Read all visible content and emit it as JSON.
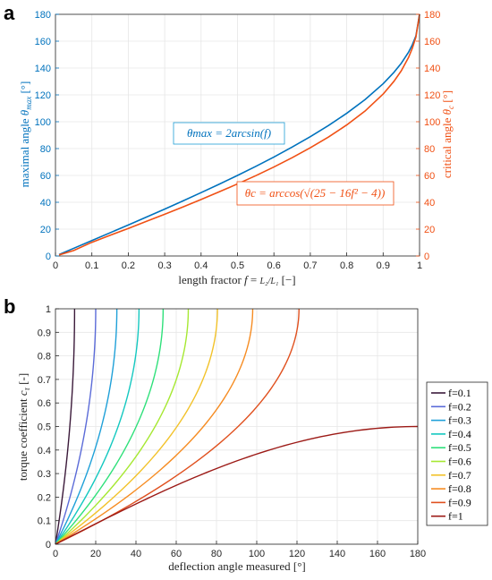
{
  "colors": {
    "theta_max": "#0072BD",
    "theta_c": "#F05014",
    "grid": "#E6E6E6"
  },
  "chart_data": [
    {
      "panel": "a",
      "type": "line",
      "xlabel": "length fractor f = L2/L1 [−]",
      "xlabel_text": "length fractor",
      "xlabel_unit": "[−]",
      "xlim": [
        0,
        1
      ],
      "x_ticks": [
        "0",
        "0.1",
        "0.2",
        "0.3",
        "0.4",
        "0.5",
        "0.6",
        "0.7",
        "0.8",
        "0.9",
        "1"
      ],
      "ylabel_left": "maximal angle θmax [°]",
      "ylabel_left_text": "maximal angle",
      "ylabel_right": "critical angle θc [°]",
      "ylabel_right_text": "critical angle",
      "ylim": [
        0,
        180
      ],
      "y_ticks": [
        "0",
        "20",
        "40",
        "60",
        "80",
        "100",
        "120",
        "140",
        "160",
        "180"
      ],
      "grid": true,
      "annotations": [
        {
          "text": "θmax = 2arcsin(f)",
          "series": "theta_max"
        },
        {
          "text": "θc = arccos(√(25 − 16f² − 4))",
          "series": "theta_c"
        }
      ],
      "series": [
        {
          "key": "theta_max",
          "x": [
            0.01,
            0.05,
            0.1,
            0.15,
            0.2,
            0.25,
            0.3,
            0.35,
            0.4,
            0.45,
            0.5,
            0.55,
            0.6,
            0.65,
            0.7,
            0.75,
            0.8,
            0.85,
            0.9,
            0.93,
            0.95,
            0.97,
            0.98,
            0.99,
            1.0
          ],
          "y": [
            1.1,
            5.7,
            11.5,
            17.3,
            23.1,
            29.0,
            34.9,
            41.0,
            47.2,
            53.5,
            60.0,
            66.7,
            73.7,
            81.1,
            88.9,
            97.2,
            106.3,
            116.4,
            128.3,
            136.9,
            143.6,
            151.9,
            157.2,
            163.9,
            180.0
          ]
        },
        {
          "key": "theta_c",
          "x": [
            0.01,
            0.05,
            0.1,
            0.15,
            0.2,
            0.25,
            0.3,
            0.35,
            0.4,
            0.45,
            0.5,
            0.55,
            0.6,
            0.65,
            0.7,
            0.75,
            0.8,
            0.85,
            0.9,
            0.93,
            0.95,
            0.97,
            0.98,
            0.99,
            1.0
          ],
          "y": [
            0.8,
            4.1,
            10.2,
            15.4,
            20.5,
            25.8,
            31.1,
            36.5,
            42.1,
            47.8,
            53.7,
            59.8,
            66.3,
            73.2,
            80.6,
            88.6,
            97.6,
            107.9,
            120.6,
            130.2,
            138.0,
            148.0,
            154.6,
            163.0,
            180.0
          ]
        }
      ]
    },
    {
      "panel": "b",
      "type": "line",
      "xlabel": "deflection angle measured [°]",
      "xlim": [
        0,
        180
      ],
      "x_ticks": [
        "0",
        "20",
        "40",
        "60",
        "80",
        "100",
        "120",
        "140",
        "160",
        "180"
      ],
      "ylabel": "torque coefficient cτ [-]",
      "ylabel_text": "torque coefficient",
      "ylim": [
        0,
        1
      ],
      "y_ticks": [
        "0",
        "0.1",
        "0.2",
        "0.3",
        "0.4",
        "0.5",
        "0.6",
        "0.7",
        "0.8",
        "0.9",
        "1"
      ],
      "grid": true,
      "legend_position": "outside-right",
      "series": [
        {
          "name": "f=0.1",
          "color": "#3B1A3A",
          "end_x": 9.5,
          "end_y": 1.0,
          "shape": 1.3
        },
        {
          "name": "f=0.2",
          "color": "#5B6BD8",
          "end_x": 20.0,
          "end_y": 1.0,
          "shape": 1.3
        },
        {
          "name": "f=0.3",
          "color": "#1FA0D8",
          "end_x": 30.5,
          "end_y": 1.0,
          "shape": 1.3
        },
        {
          "name": "f=0.4",
          "color": "#14C8C0",
          "end_x": 41.5,
          "end_y": 1.0,
          "shape": 1.3
        },
        {
          "name": "f=0.5",
          "color": "#2EE07A",
          "end_x": 53.5,
          "end_y": 1.0,
          "shape": 1.3
        },
        {
          "name": "f=0.6",
          "color": "#A6E832",
          "end_x": 66.0,
          "end_y": 1.0,
          "shape": 1.3
        },
        {
          "name": "f=0.7",
          "color": "#F2C22A",
          "end_x": 80.5,
          "end_y": 1.0,
          "shape": 1.3
        },
        {
          "name": "f=0.8",
          "color": "#F68C22",
          "end_x": 98.0,
          "end_y": 1.0,
          "shape": 1.3
        },
        {
          "name": "f=0.9",
          "color": "#E0501E",
          "end_x": 121.0,
          "end_y": 1.0,
          "shape": 1.3
        },
        {
          "name": "f=1",
          "color": "#9C1A16",
          "end_x": 180.0,
          "end_y": 0.5,
          "shape": 0.0
        }
      ]
    }
  ]
}
